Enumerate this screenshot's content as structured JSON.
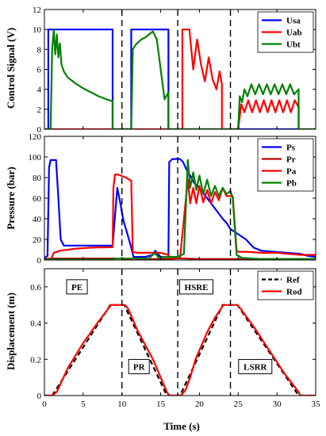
{
  "chart_data": [
    {
      "type": "line",
      "ylabel": "Control Signal (V)",
      "xlim": [
        0,
        35
      ],
      "ylim": [
        0,
        12
      ],
      "yticks": [
        0,
        2,
        4,
        6,
        8,
        10,
        12
      ],
      "grid": false,
      "legend": "top-right",
      "vlines": [
        10,
        17.2,
        24
      ],
      "series": [
        {
          "name": "Usa",
          "color": "#0000ff",
          "x": [
            0,
            0.5,
            0.5,
            8.8,
            8.8,
            11.2,
            11.2,
            16.0,
            16.0,
            25.0,
            25.0,
            33.0
          ],
          "y": [
            0,
            0,
            10,
            10,
            0,
            0,
            10,
            10,
            0,
            0,
            0,
            0
          ]
        },
        {
          "name": "Uab",
          "color": "#ff0000",
          "x": [
            0,
            17.8,
            17.8,
            18.3,
            18.7,
            19.2,
            19.7,
            20.2,
            20.7,
            21.2,
            21.7,
            22.2,
            22.6,
            22.9,
            22.9,
            25.0,
            25.4,
            25.8,
            26.3,
            26.8,
            27.3,
            27.8,
            28.3,
            28.8,
            29.3,
            29.8,
            30.3,
            30.8,
            31.3,
            31.8,
            32.3,
            32.8,
            32.8,
            35
          ],
          "y": [
            0,
            0,
            10,
            10,
            10,
            6.0,
            9.0,
            6.5,
            4.8,
            7.2,
            5.0,
            4.0,
            5.8,
            4.5,
            0,
            0,
            2.5,
            1.7,
            2.9,
            1.7,
            2.9,
            1.7,
            2.9,
            1.7,
            2.9,
            1.7,
            2.9,
            1.7,
            2.9,
            1.7,
            2.9,
            2.2,
            0,
            0
          ]
        },
        {
          "name": "Ubt",
          "color": "#008000",
          "x": [
            0,
            0.8,
            1.0,
            1.2,
            1.4,
            1.6,
            1.8,
            2.0,
            2.2,
            2.5,
            3.0,
            4.0,
            5.0,
            6.0,
            7.0,
            8.0,
            8.8,
            8.8,
            11.2,
            11.4,
            11.8,
            12.5,
            13.0,
            13.5,
            14.0,
            14.5,
            15.0,
            15.5,
            16.0,
            16.0,
            25.0,
            25.2,
            25.5,
            25.8,
            26.2,
            26.7,
            27.2,
            27.7,
            28.2,
            28.7,
            29.2,
            29.7,
            30.2,
            30.7,
            31.2,
            31.7,
            32.2,
            32.8,
            32.8,
            35
          ],
          "y": [
            0,
            0,
            8.0,
            10.0,
            7.5,
            9.5,
            7.2,
            8.6,
            6.5,
            5.8,
            5.2,
            4.6,
            4.1,
            3.7,
            3.3,
            3.0,
            2.8,
            0,
            0,
            8.0,
            8.5,
            9.0,
            9.2,
            9.5,
            9.8,
            9.0,
            6.0,
            3.0,
            3.7,
            0,
            0,
            3.3,
            2.7,
            4.0,
            3.3,
            4.5,
            3.5,
            4.5,
            3.5,
            4.5,
            3.5,
            4.5,
            3.5,
            4.5,
            3.5,
            4.5,
            3.5,
            4.0,
            0,
            0
          ]
        }
      ]
    },
    {
      "type": "line",
      "ylabel": "Pressure (bar)",
      "xlim": [
        0,
        35
      ],
      "ylim": [
        0,
        120
      ],
      "yticks": [
        0,
        20,
        40,
        60,
        80,
        100,
        120
      ],
      "grid": false,
      "legend": "top-right",
      "vlines": [
        10,
        17.2,
        24
      ],
      "series": [
        {
          "name": "Ps",
          "color": "#0000ff",
          "x": [
            0,
            0.4,
            0.6,
            0.8,
            1.5,
            1.8,
            2.1,
            2.5,
            3,
            5,
            8.8,
            9.1,
            9.4,
            9.8,
            10.2,
            10.6,
            11.1,
            11.5,
            13.0,
            14.0,
            14.3,
            14.6,
            15.0,
            16.0,
            16.1,
            16.5,
            17.5,
            17.9,
            18.3,
            18.8,
            19.3,
            20.0,
            20.5,
            21.0,
            21.5,
            22.0,
            22.5,
            23.0,
            23.5,
            24.0,
            25.0,
            26.0,
            26.5,
            27.0,
            28.0,
            33.0,
            34,
            35
          ],
          "y": [
            2,
            4,
            90,
            97,
            97,
            60,
            20,
            14,
            14,
            14,
            14,
            42,
            70,
            55,
            38,
            28,
            15,
            3,
            3,
            5,
            9,
            6,
            3,
            3,
            95,
            98,
            98,
            95,
            88,
            82,
            75,
            70,
            65,
            60,
            55,
            50,
            45,
            40,
            36,
            30,
            25,
            20,
            16,
            12,
            9,
            6,
            4,
            3
          ]
        },
        {
          "name": "Pr",
          "color": "#c00000",
          "x": [
            0,
            1.0,
            5,
            9,
            10,
            10.5,
            11.5,
            12,
            16,
            17,
            18,
            20,
            24,
            26,
            28,
            30,
            33,
            35
          ],
          "y": [
            1,
            1.5,
            1.5,
            1.5,
            1.5,
            0.5,
            1.5,
            1,
            1,
            1.5,
            1.5,
            1,
            1,
            1,
            1,
            1,
            1,
            1
          ]
        },
        {
          "name": "Pa",
          "color": "#ff0000",
          "x": [
            0,
            0.8,
            1.2,
            2,
            4,
            6,
            8.8,
            8.9,
            9.1,
            9.5,
            10.5,
            11.2,
            11.4,
            12,
            15,
            16,
            16.2,
            17.5,
            18.0,
            18.5,
            18.8,
            19.2,
            19.6,
            20.0,
            20.5,
            21.0,
            21.5,
            22.0,
            22.5,
            23.0,
            23.5,
            24.0,
            24.3,
            24.8,
            25,
            26,
            28,
            30,
            33,
            35
          ],
          "y": [
            0,
            0,
            7,
            9,
            11,
            12,
            12.5,
            70,
            83,
            83,
            80,
            77,
            8,
            7,
            7,
            5,
            2,
            2,
            40,
            78,
            55,
            70,
            55,
            72,
            56,
            68,
            55,
            66,
            58,
            70,
            62,
            62,
            62,
            9,
            8,
            8,
            7,
            7,
            5,
            5
          ]
        },
        {
          "name": "Pb",
          "color": "#008000",
          "x": [
            0,
            4,
            8.8,
            9.2,
            11,
            11.5,
            12,
            13.5,
            14.2,
            14.8,
            15.5,
            16.0,
            16.5,
            17.2,
            18,
            18.5,
            18.8,
            19.2,
            19.6,
            20.0,
            20.5,
            21.0,
            21.5,
            22.0,
            22.5,
            23.0,
            23.5,
            24.0,
            24.3,
            24.8,
            25.5,
            28,
            35
          ],
          "y": [
            0.5,
            0.5,
            0.5,
            1.5,
            1.5,
            1.5,
            1.5,
            1.5,
            7,
            2,
            3,
            3,
            3,
            3,
            6,
            97,
            70,
            85,
            68,
            82,
            64,
            78,
            62,
            72,
            62,
            70,
            64,
            67,
            60,
            5,
            2,
            1,
            1
          ]
        }
      ]
    },
    {
      "type": "line",
      "ylabel": "Displacement (m)",
      "xlabel": "Time (s)",
      "xlim": [
        0,
        35
      ],
      "ylim": [
        0,
        0.7
      ],
      "xticks": [
        0,
        5,
        10,
        15,
        20,
        25,
        30,
        35
      ],
      "yticks": [
        0,
        0.2,
        0.4,
        0.6
      ],
      "grid": false,
      "legend": "top-right",
      "vlines": [
        10,
        17.2,
        24
      ],
      "annotations": [
        {
          "text": "PE",
          "x": 4.2,
          "y": 0.6
        },
        {
          "text": "PR",
          "x": 12.2,
          "y": 0.16
        },
        {
          "text": "HSRE",
          "x": 19.6,
          "y": 0.6
        },
        {
          "text": "LSRR",
          "x": 27.2,
          "y": 0.16
        }
      ],
      "series": [
        {
          "name": "Ref",
          "color": "#000000",
          "dash": true,
          "x": [
            0,
            1,
            8.5,
            10.3,
            15.8,
            17.5,
            23.0,
            24.9,
            32.8,
            35
          ],
          "y": [
            0,
            0,
            0.5,
            0.5,
            0,
            0,
            0.5,
            0.5,
            0,
            0
          ]
        },
        {
          "name": "Rod",
          "color": "#ff0000",
          "x": [
            0,
            1.0,
            1.6,
            3.0,
            5.0,
            7.0,
            8.6,
            10.4,
            10.8,
            12.0,
            14.0,
            15.8,
            16.1,
            17.6,
            18.2,
            18.8,
            19.5,
            21.0,
            22.0,
            23.1,
            24.9,
            25.3,
            27.0,
            29.0,
            31.0,
            32.8,
            33.0,
            35
          ],
          "y": [
            0,
            0,
            0.02,
            0.15,
            0.29,
            0.41,
            0.5,
            0.5,
            0.48,
            0.36,
            0.2,
            0.02,
            0,
            0,
            0.03,
            0.1,
            0.2,
            0.35,
            0.43,
            0.5,
            0.5,
            0.48,
            0.38,
            0.25,
            0.12,
            0.02,
            0,
            0
          ]
        }
      ]
    }
  ]
}
